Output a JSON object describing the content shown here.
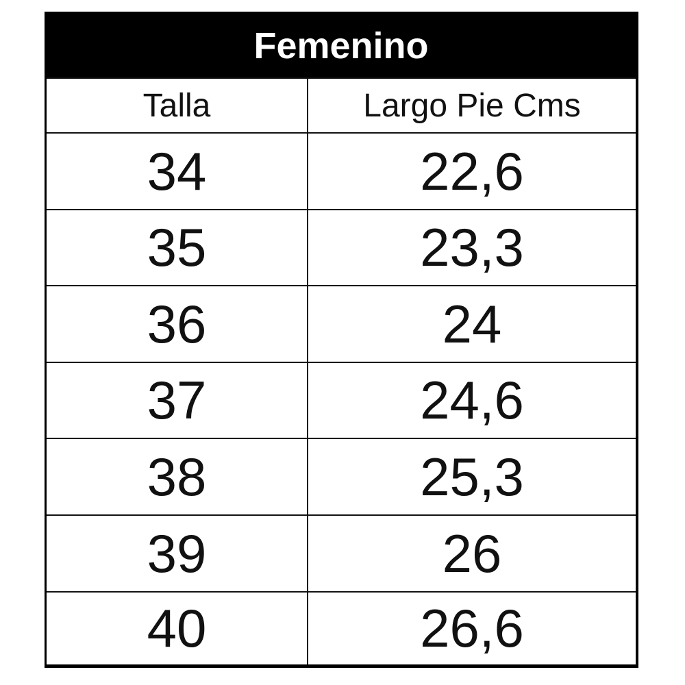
{
  "title": "Femenino",
  "columns": [
    "Talla",
    "Largo Pie Cms"
  ],
  "rows": [
    [
      "34",
      "22,6"
    ],
    [
      "35",
      "23,3"
    ],
    [
      "36",
      "24"
    ],
    [
      "37",
      "24,6"
    ],
    [
      "38",
      "25,3"
    ],
    [
      "39",
      "26"
    ],
    [
      "40",
      "26,6"
    ]
  ]
}
